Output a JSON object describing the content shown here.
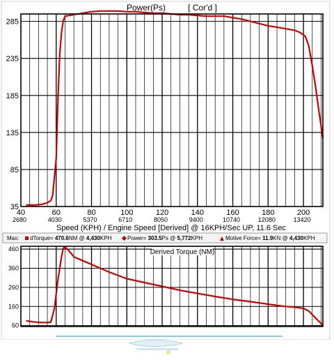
{
  "chart_data": [
    {
      "type": "line",
      "title": "Power(Ps)",
      "title_tag": "[ Cor'd ]",
      "xlabel": "Speed (KPH) / Engine Speed [Derived] @ 16KPH/Sec UP, 11.6 Sec",
      "x_ticks": [
        40,
        60,
        80,
        100,
        120,
        140,
        160,
        180,
        200
      ],
      "x_ticks_secondary": [
        "2680",
        "4030",
        "5370",
        "6710",
        "8050",
        "9400",
        "10740",
        "12080",
        "13420"
      ],
      "y_ticks": [
        35,
        85,
        135,
        185,
        235,
        285
      ],
      "xlim": [
        40,
        211
      ],
      "ylim": [
        35,
        295
      ],
      "grid": true,
      "series": [
        {
          "color": "#cc0000",
          "x": [
            43,
            48,
            52,
            55,
            57,
            58,
            60,
            61,
            62,
            63,
            64,
            65,
            70,
            75,
            80,
            85,
            90,
            95,
            100,
            105,
            110,
            115,
            120,
            125,
            130,
            135,
            140,
            145,
            150,
            155,
            160,
            165,
            170,
            175,
            180,
            185,
            190,
            195,
            198,
            201,
            203,
            205,
            207,
            209,
            211
          ],
          "y": [
            37,
            37,
            38,
            40,
            43,
            50,
            100,
            180,
            240,
            270,
            286,
            292,
            294,
            296,
            298,
            299,
            299,
            299,
            298,
            298,
            297,
            296,
            296,
            295,
            294,
            294,
            293,
            292,
            292,
            292,
            290,
            288,
            285,
            282,
            279,
            277,
            275,
            273,
            270,
            265,
            252,
            225,
            195,
            160,
            127
          ]
        }
      ]
    },
    {
      "type": "line",
      "title": "Derived Torque (NM)",
      "y_ticks": [
        60,
        160,
        260,
        360,
        460
      ],
      "xlim": [
        40,
        211
      ],
      "ylim": [
        55,
        475
      ],
      "grid": true,
      "series": [
        {
          "color": "#cc0000",
          "x": [
            43,
            48,
            52,
            55,
            57,
            59,
            61,
            63,
            64,
            65,
            67,
            70,
            80,
            90,
            100,
            110,
            120,
            130,
            140,
            150,
            160,
            170,
            180,
            190,
            195,
            200,
            203,
            206,
            209,
            211
          ],
          "y": [
            85,
            78,
            76,
            76,
            78,
            150,
            300,
            420,
            465,
            470,
            455,
            420,
            380,
            340,
            305,
            285,
            265,
            245,
            228,
            212,
            197,
            185,
            172,
            160,
            156,
            150,
            136,
            108,
            80,
            62
          ]
        }
      ]
    }
  ],
  "caption": {
    "max_label": "Max:",
    "dtorque": {
      "prefix": "dTorque=",
      "value": "470.6",
      "unit": "NM @",
      "at": "4,430",
      "suffix": "KPH"
    },
    "power": {
      "prefix": "Power=",
      "value": "303.5",
      "unit": "Ps @",
      "at": "5,772",
      "suffix": "KPH"
    },
    "motive": {
      "prefix": "Motive Force=",
      "value": "11.9",
      "unit": "KN @",
      "at": "4,430",
      "suffix": "KPH"
    }
  }
}
